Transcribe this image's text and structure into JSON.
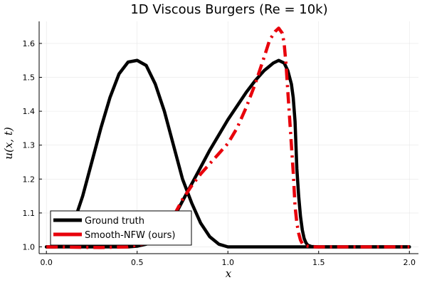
{
  "chart_data": {
    "type": "line",
    "title": "1D Viscous Burgers (Re = 10k)",
    "xlabel": "x",
    "ylabel": "u(x, t)",
    "xlim": [
      -0.04,
      2.05
    ],
    "ylim": [
      0.98,
      1.665
    ],
    "xticks": [
      0.0,
      0.5,
      1.0,
      1.5,
      2.0
    ],
    "xtick_labels": [
      "0.0",
      "0.5",
      "1.0",
      "1.5",
      "2.0"
    ],
    "yticks": [
      1.0,
      1.1,
      1.2,
      1.3,
      1.4,
      1.5,
      1.6
    ],
    "ytick_labels": [
      "1.0",
      "1.1",
      "1.2",
      "1.3",
      "1.4",
      "1.5",
      "1.6"
    ],
    "grid": true,
    "legend_position": "bottom-left",
    "series": [
      {
        "name": "Ground truth",
        "color": "#000000",
        "style": "solid",
        "label_index": 0,
        "segments": [
          {
            "x": [
              0.0,
              0.05,
              0.1,
              0.15,
              0.2,
              0.25,
              0.3,
              0.35,
              0.4,
              0.45,
              0.5,
              0.55,
              0.6,
              0.65,
              0.7,
              0.75,
              0.8,
              0.85,
              0.9,
              0.95,
              1.0,
              1.05,
              2.0
            ],
            "y": [
              1.0,
              1.0,
              1.02,
              1.07,
              1.15,
              1.25,
              1.35,
              1.44,
              1.51,
              1.545,
              1.55,
              1.535,
              1.48,
              1.4,
              1.3,
              1.2,
              1.13,
              1.07,
              1.03,
              1.008,
              1.0,
              1.0,
              1.0
            ]
          },
          {
            "x": [
              0.0,
              0.45,
              0.5,
              0.55,
              0.6,
              0.65,
              0.7,
              0.75,
              0.8,
              0.85,
              0.9,
              0.95,
              1.0,
              1.05,
              1.1,
              1.15,
              1.2,
              1.25,
              1.28,
              1.31,
              1.33,
              1.35,
              1.36,
              1.37,
              1.375,
              1.38,
              1.39,
              1.4,
              1.41,
              1.42,
              1.43,
              1.44,
              1.46,
              1.5,
              2.0
            ],
            "y": [
              1.0,
              1.0,
              1.002,
              1.008,
              1.02,
              1.045,
              1.085,
              1.135,
              1.185,
              1.235,
              1.285,
              1.33,
              1.375,
              1.415,
              1.455,
              1.49,
              1.52,
              1.542,
              1.55,
              1.542,
              1.52,
              1.48,
              1.44,
              1.37,
              1.3,
              1.23,
              1.15,
              1.09,
              1.05,
              1.025,
              1.012,
              1.005,
              1.001,
              1.0,
              1.0
            ]
          }
        ]
      },
      {
        "name": "Smooth-NFW (ours)",
        "color": "#e8000b",
        "style": "dashdot",
        "label_index": 1,
        "segments": [
          {
            "x": [
              0.0,
              0.3,
              0.45,
              0.55,
              0.6,
              0.65,
              0.7,
              0.75,
              0.8,
              0.85,
              0.9,
              0.95,
              1.0,
              1.05,
              1.1,
              1.15,
              1.2,
              1.23,
              1.26,
              1.28,
              1.3,
              1.31,
              1.32,
              1.33,
              1.34,
              1.35,
              1.36,
              1.365,
              1.37,
              1.38,
              1.39,
              1.4,
              1.41,
              1.43,
              1.46,
              1.5,
              2.0
            ],
            "y": [
              1.0,
              0.998,
              1.0,
              1.01,
              1.025,
              1.05,
              1.09,
              1.14,
              1.18,
              1.215,
              1.245,
              1.275,
              1.305,
              1.35,
              1.41,
              1.48,
              1.56,
              1.61,
              1.635,
              1.645,
              1.63,
              1.6,
              1.54,
              1.46,
              1.38,
              1.3,
              1.22,
              1.17,
              1.12,
              1.07,
              1.04,
              1.02,
              1.01,
              1.003,
              1.0,
              1.0,
              1.0
            ]
          }
        ]
      }
    ]
  }
}
